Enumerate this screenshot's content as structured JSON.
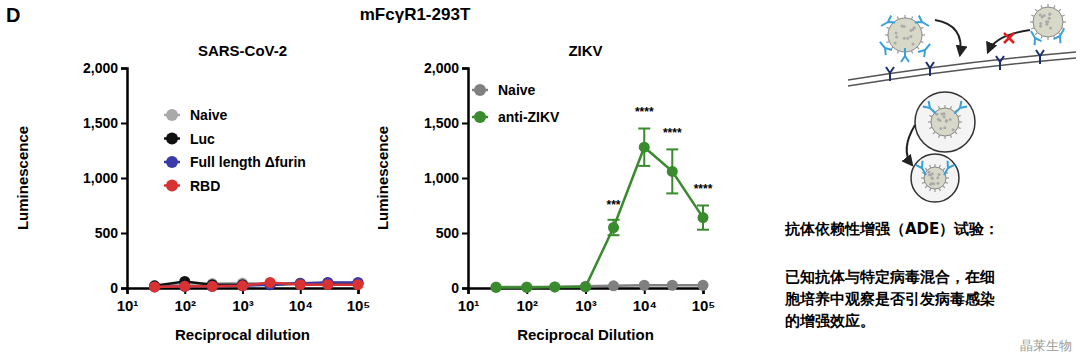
{
  "figure": {
    "panel_label": "D",
    "title": "mFcγR1-293T"
  },
  "chart_data": [
    {
      "type": "line",
      "title": "SARS-CoV-2",
      "x_label": "Reciprocal dilution",
      "y_label": "Luminescence",
      "log": "x",
      "marker": "circle",
      "legend": "upper left",
      "x": [
        30,
        100,
        300,
        1000,
        3000,
        10000,
        30000,
        100000
      ],
      "xlim": [
        10,
        100000
      ],
      "xticks": [
        {
          "value": 10,
          "label": "10¹"
        },
        {
          "value": 100,
          "label": "10²"
        },
        {
          "value": 1000,
          "label": "10³"
        },
        {
          "value": 10000,
          "label": "10⁴"
        },
        {
          "value": 100000,
          "label": "10⁵"
        }
      ],
      "ylim": [
        0,
        2000
      ],
      "yticks": [
        0,
        500,
        {
          "value": 1000,
          "label": "1,000"
        },
        {
          "value": 1500,
          "label": "1,500"
        },
        {
          "value": 2000,
          "label": "2,000"
        }
      ],
      "series": [
        {
          "name": "Naive",
          "color": "#a9a9a9",
          "values": [
            20,
            30,
            40,
            45,
            40,
            45,
            50,
            45
          ]
        },
        {
          "name": "Luc",
          "color": "#111111",
          "values": [
            20,
            60,
            30,
            30,
            30,
            40,
            40,
            40
          ]
        },
        {
          "name": "Full length Δfurin",
          "color": "#3a3aa8",
          "values": [
            10,
            15,
            15,
            20,
            30,
            40,
            50,
            50
          ]
        },
        {
          "name": "RBD",
          "color": "#d93232",
          "values": [
            10,
            15,
            15,
            20,
            50,
            30,
            30,
            30
          ]
        }
      ]
    },
    {
      "type": "line",
      "title": "ZIKV",
      "x_label": "Reciprocal Dilution",
      "y_label": "Luminescence",
      "log": "x",
      "marker": "circle",
      "legend": "upper left",
      "x": [
        30,
        100,
        300,
        1000,
        3000,
        10000,
        30000,
        100000
      ],
      "xlim": [
        10,
        100000
      ],
      "xticks": [
        {
          "value": 10,
          "label": "10¹"
        },
        {
          "value": 100,
          "label": "10²"
        },
        {
          "value": 1000,
          "label": "10³"
        },
        {
          "value": 10000,
          "label": "10⁴"
        },
        {
          "value": 100000,
          "label": "10⁵"
        }
      ],
      "ylim": [
        0,
        2000
      ],
      "yticks": [
        0,
        500,
        {
          "value": 1000,
          "label": "1,000"
        },
        {
          "value": 1500,
          "label": "1,500"
        },
        {
          "value": 2000,
          "label": "2,000"
        }
      ],
      "series": [
        {
          "name": "Naive",
          "color": "#808080",
          "values": [
            10,
            10,
            10,
            15,
            20,
            25,
            25,
            25
          ]
        },
        {
          "name": "anti-ZIKV",
          "color": "#3a8a2e",
          "values": [
            5,
            5,
            10,
            10,
            550,
            1280,
            1060,
            640
          ],
          "errors": [
            null,
            null,
            null,
            null,
            70,
            170,
            200,
            110
          ]
        }
      ],
      "annotations": [
        {
          "x": 3000,
          "y": 720,
          "text": "***"
        },
        {
          "x": 10000,
          "y": 1560,
          "text": "****"
        },
        {
          "x": 30000,
          "y": 1370,
          "text": "****"
        },
        {
          "x": 100000,
          "y": 860,
          "text": "****"
        }
      ]
    }
  ],
  "side_panel": {
    "heading": "抗体依赖性增强（ADE）试验：",
    "body_lines": [
      "已知抗体与特定病毒混合，在细",
      "胞培养中观察是否引发病毒感染",
      "的增强效应。"
    ],
    "watermark": "晶莱生物"
  }
}
